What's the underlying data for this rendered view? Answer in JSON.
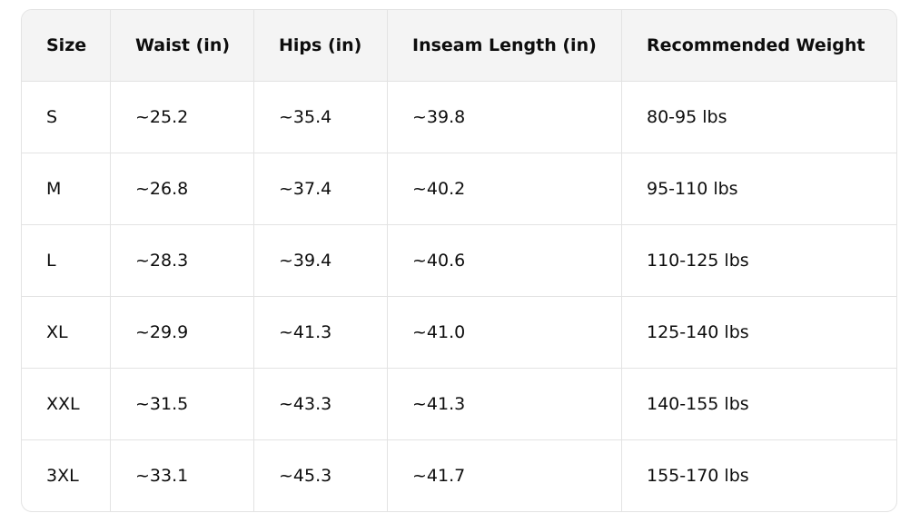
{
  "table": {
    "header": [
      "Size",
      "Waist (in)",
      "Hips (in)",
      "Inseam Length (in)",
      "Recommended Weight"
    ],
    "rows": [
      [
        "S",
        "~25.2",
        "~35.4",
        "~39.8",
        "80-95 lbs"
      ],
      [
        "M",
        "~26.8",
        "~37.4",
        "~40.2",
        "95-110 lbs"
      ],
      [
        "L",
        "~28.3",
        "~39.4",
        "~40.6",
        "110-125 lbs"
      ],
      [
        "XL",
        "~29.9",
        "~41.3",
        "~41.0",
        "125-140 lbs"
      ],
      [
        "XXL",
        "~31.5",
        "~43.3",
        "~41.3",
        "140-155 lbs"
      ],
      [
        "3XL",
        "~33.1",
        "~45.3",
        "~41.7",
        "155-170 lbs"
      ]
    ]
  }
}
